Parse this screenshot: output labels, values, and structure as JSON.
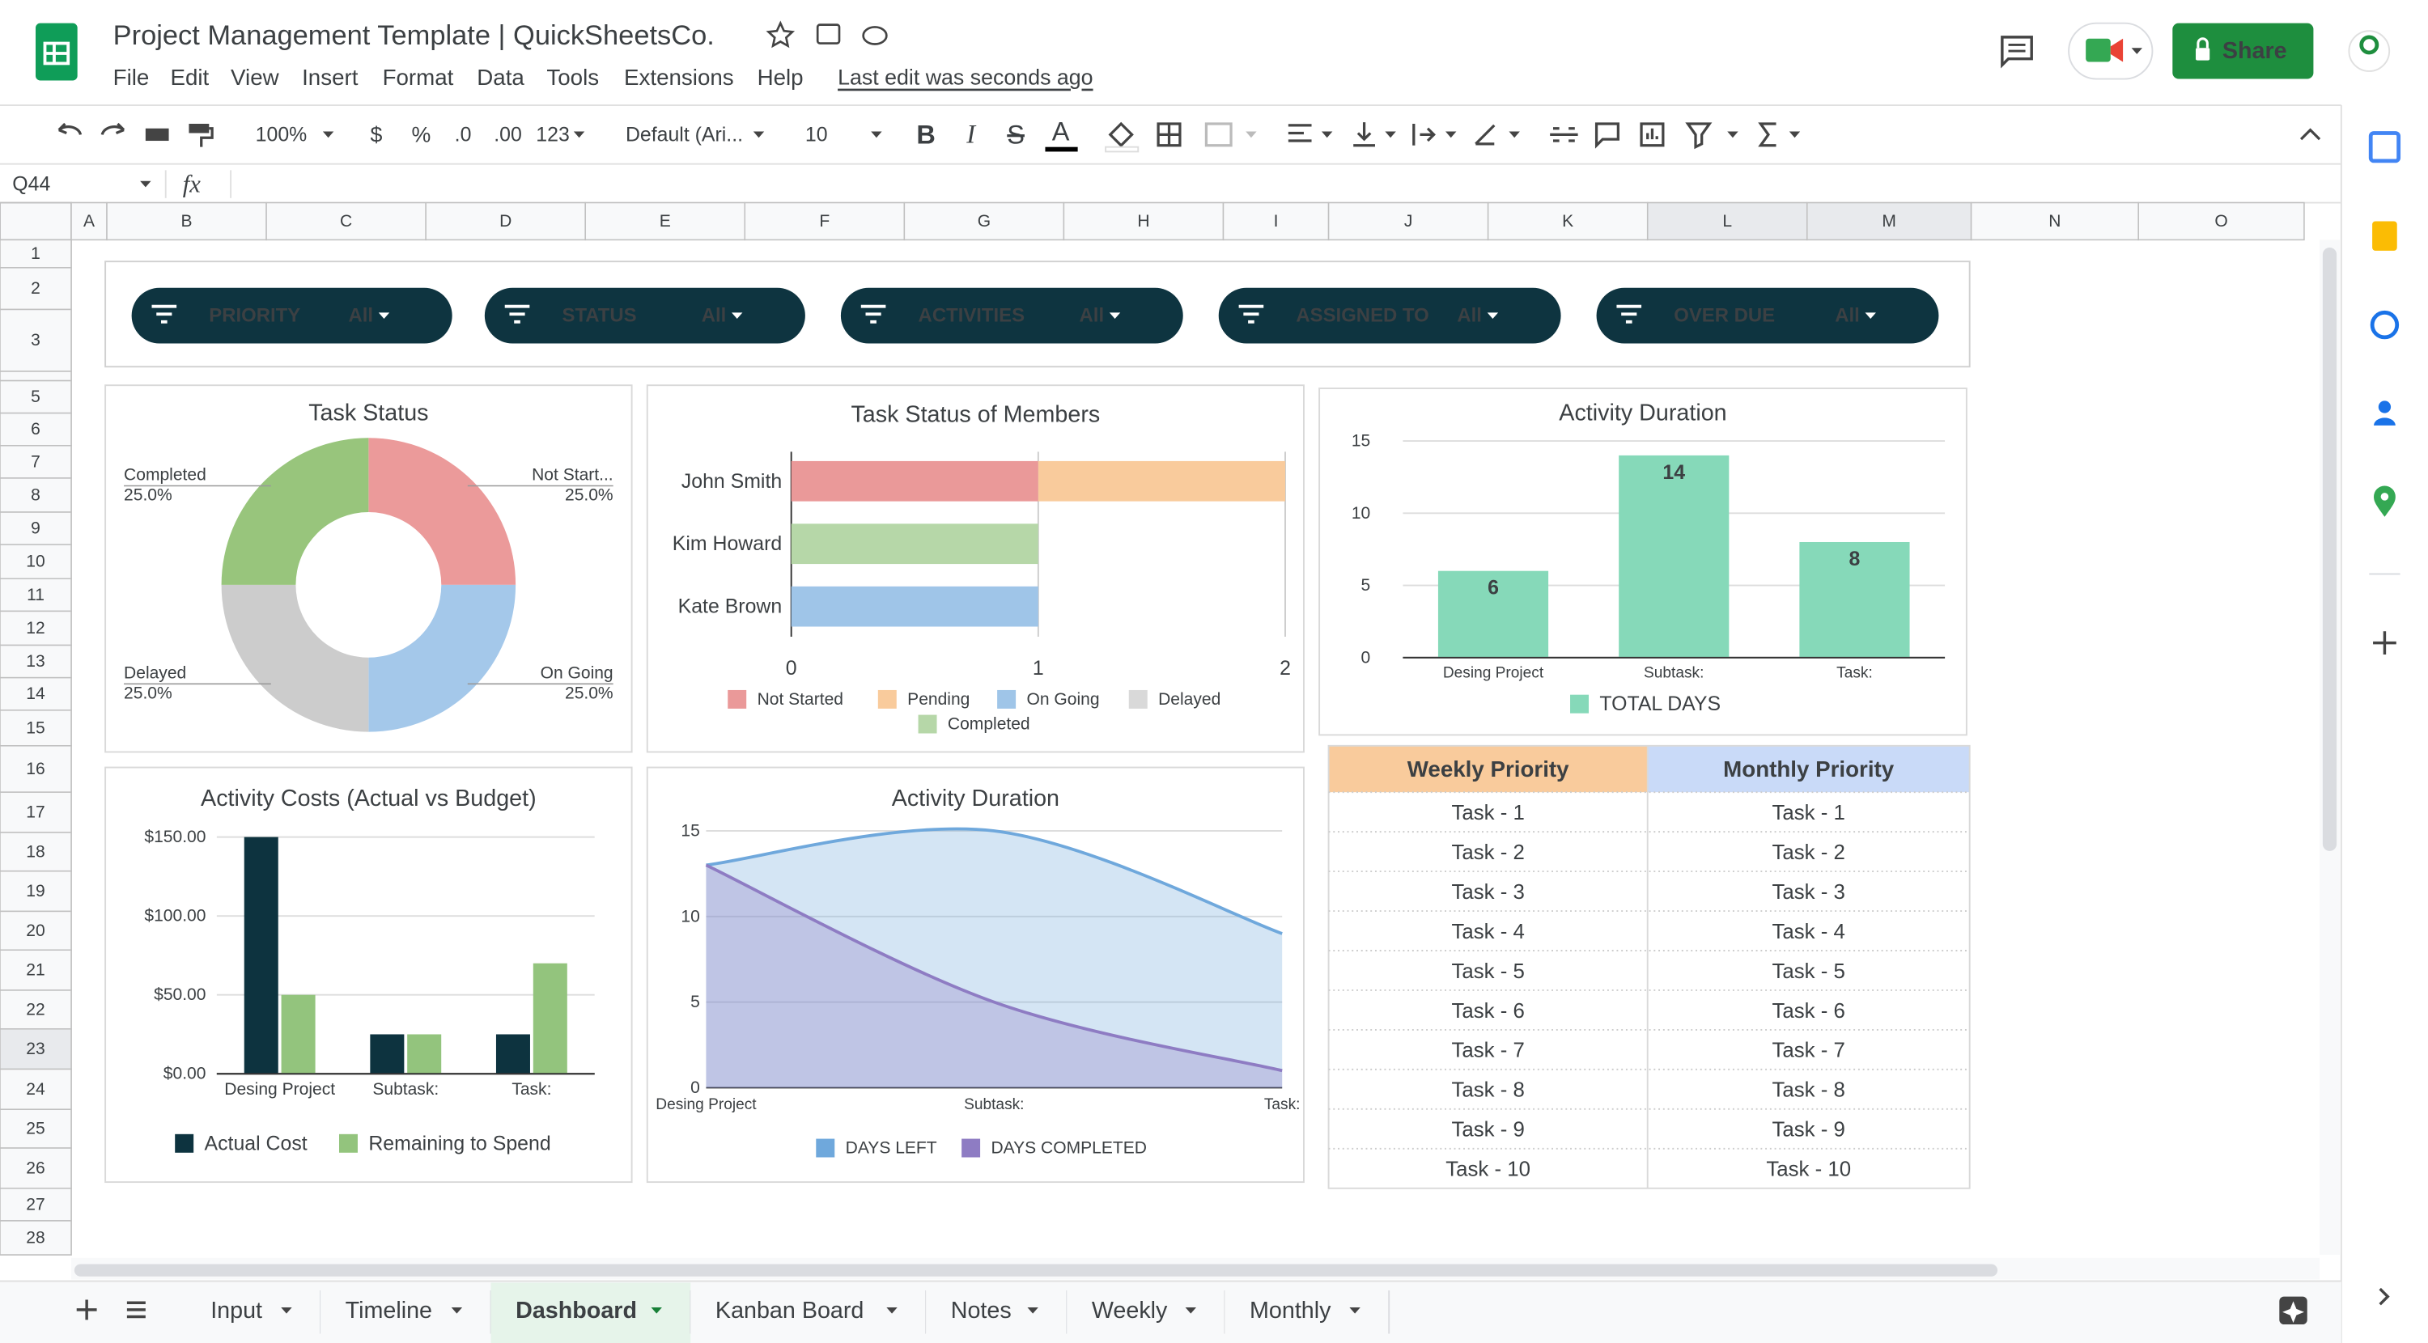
{
  "app": {
    "title": "Project Management Template | QuickSheetsCo.",
    "menu": [
      "File",
      "Edit",
      "View",
      "Insert",
      "Format",
      "Data",
      "Tools",
      "Extensions",
      "Help"
    ],
    "last_edit": "Last edit was seconds ago",
    "share": "Share"
  },
  "toolbar": {
    "zoom": "100%",
    "currency": "$",
    "percent": "%",
    "decrease_decimals": ".0",
    "increase_decimals": ".00",
    "number_format": "123",
    "font": "Default (Ari...",
    "font_size": "10",
    "bold": "B",
    "italic": "I",
    "strikethrough": "S",
    "text_color": "A"
  },
  "formula_bar": {
    "cell": "Q44",
    "fx": "fx"
  },
  "columns": [
    "A",
    "B",
    "C",
    "D",
    "E",
    "F",
    "G",
    "H",
    "I",
    "J",
    "K",
    "L",
    "M",
    "N",
    "O"
  ],
  "rows": [
    1,
    2,
    3,
    5,
    6,
    7,
    8,
    9,
    10,
    11,
    12,
    13,
    14,
    15,
    16,
    17,
    18,
    19,
    20,
    21,
    22,
    23,
    24,
    25,
    26,
    27,
    28
  ],
  "filters": [
    {
      "label": "PRIORITY",
      "value": "All"
    },
    {
      "label": "STATUS",
      "value": "All"
    },
    {
      "label": "ACTIVITIES",
      "value": "All"
    },
    {
      "label": "ASSIGNED TO",
      "value": "All"
    },
    {
      "label": "OVER DUE",
      "value": "All"
    }
  ],
  "chart_data": [
    {
      "type": "pie",
      "title": "Task Status",
      "donut": true,
      "categories": [
        "Not Start...",
        "On Going",
        "Delayed",
        "Completed"
      ],
      "values": [
        25,
        25,
        25,
        25
      ],
      "value_labels": [
        "25.0%",
        "25.0%",
        "25.0%",
        "25.0%"
      ],
      "colors": [
        "#eb9a9a",
        "#a4c8ea",
        "#cccccc",
        "#98c57c"
      ]
    },
    {
      "type": "hbar",
      "stacked": true,
      "title": "Task Status of Members",
      "categories": [
        "John Smith",
        "Kim Howard",
        "Kate Brown"
      ],
      "series": [
        {
          "name": "Not Started",
          "color": "#ea9999",
          "values": [
            1,
            0,
            0
          ]
        },
        {
          "name": "Pending",
          "color": "#f9cb9c",
          "values": [
            1,
            0,
            0
          ]
        },
        {
          "name": "On Going",
          "color": "#9fc5e8",
          "values": [
            0,
            0,
            1
          ]
        },
        {
          "name": "Delayed",
          "color": "#d9d9d9",
          "values": [
            0,
            0,
            0
          ]
        },
        {
          "name": "Completed",
          "color": "#b6d7a8",
          "values": [
            0,
            1,
            0
          ]
        }
      ],
      "xlim": [
        0,
        2
      ],
      "xticks": [
        0,
        1,
        2
      ],
      "grid": true
    },
    {
      "type": "bar",
      "title": "Activity Duration",
      "data_labels": true,
      "categories": [
        "Desing Project",
        "Subtask:",
        "Task:"
      ],
      "series": [
        {
          "name": "TOTAL DAYS",
          "color": "#86d9b9",
          "values": [
            6,
            14,
            8
          ]
        }
      ],
      "ylim": [
        0,
        15
      ],
      "yticks": [
        0,
        5,
        10,
        15
      ],
      "grid": true
    },
    {
      "type": "bar",
      "title": "Activity Costs (Actual vs Budget)",
      "categories": [
        "Desing Project",
        "Subtask:",
        "Task:"
      ],
      "series": [
        {
          "name": "Actual Cost",
          "color": "#0d333f",
          "values": [
            150,
            25,
            25
          ]
        },
        {
          "name": "Remaining to Spend",
          "color": "#93c47d",
          "values": [
            50,
            25,
            70
          ]
        }
      ],
      "ylim": [
        0,
        150
      ],
      "yticks": [
        {
          "value": 0,
          "label": "$0.00"
        },
        {
          "value": 50,
          "label": "$50.00"
        },
        {
          "value": 100,
          "label": "$100.00"
        },
        {
          "value": 150,
          "label": "$150.00"
        }
      ],
      "grid": true
    },
    {
      "type": "area",
      "title": "Activity Duration",
      "smooth": true,
      "categories": [
        "Desing Project",
        "Subtask:",
        "Task:"
      ],
      "series": [
        {
          "name": "DAYS LEFT",
          "color": "#6fa8dc",
          "values": [
            13,
            15,
            9
          ]
        },
        {
          "name": "DAYS COMPLETED",
          "color": "#8e7cc3",
          "values": [
            13,
            5,
            1
          ]
        }
      ],
      "ylim": [
        0,
        15
      ],
      "yticks": [
        0,
        5,
        10,
        15
      ],
      "grid": true
    }
  ],
  "priority_table": {
    "headers": [
      "Weekly Priority",
      "Monthly Priority"
    ],
    "rows": [
      [
        "Task - 1",
        "Task - 1"
      ],
      [
        "Task - 2",
        "Task - 2"
      ],
      [
        "Task - 3",
        "Task - 3"
      ],
      [
        "Task - 4",
        "Task - 4"
      ],
      [
        "Task - 5",
        "Task - 5"
      ],
      [
        "Task - 6",
        "Task - 6"
      ],
      [
        "Task - 7",
        "Task - 7"
      ],
      [
        "Task - 8",
        "Task - 8"
      ],
      [
        "Task - 9",
        "Task - 9"
      ],
      [
        "Task - 10",
        "Task - 10"
      ]
    ]
  },
  "sheet_tabs": {
    "tabs": [
      "Input",
      "Timeline",
      "Dashboard",
      "Kanban Board",
      "Notes",
      "Weekly",
      "Monthly"
    ],
    "active": 2
  }
}
